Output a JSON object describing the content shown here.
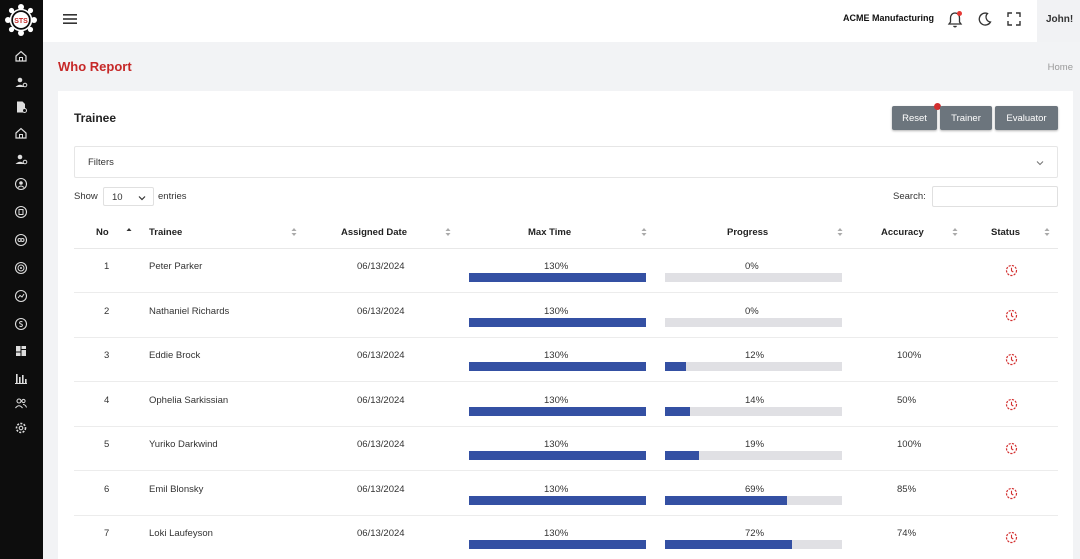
{
  "brand": {
    "logo_text": "STS"
  },
  "sidebar": {
    "icons": [
      "home-icon",
      "user-gear-icon",
      "document-gear-icon",
      "home-icon",
      "user-gear-icon",
      "user-circle-icon",
      "document-circle-icon",
      "link-circle-icon",
      "target-circle-icon",
      "chart-circle-icon",
      "dollar-circle-icon",
      "dashboard-icon",
      "bar-chart-icon",
      "users-icon",
      "settings-icon"
    ]
  },
  "header": {
    "company": "ACME Manufacturing",
    "user_name": "John!",
    "notification_dot": true
  },
  "page": {
    "title": "Who Report",
    "breadcrumb": "Home"
  },
  "card": {
    "title": "Trainee",
    "buttons": {
      "reset": "Reset",
      "trainer": "Trainer",
      "evaluator": "Evaluator"
    },
    "filters_label": "Filters",
    "show_label": "Show",
    "entries_value": "10",
    "entries_label": "entries",
    "search_label": "Search:",
    "search_value": ""
  },
  "table": {
    "columns": [
      "No",
      "Trainee",
      "Assigned Date",
      "Max Time",
      "Progress",
      "Accuracy",
      "Status"
    ],
    "rows": [
      {
        "no": "1",
        "trainee": "Peter Parker",
        "date": "06/13/2024",
        "max_time": "130%",
        "max_time_fill": 1.0,
        "progress": "0%",
        "progress_fill": 0.0,
        "accuracy": ""
      },
      {
        "no": "2",
        "trainee": "Nathaniel Richards",
        "date": "06/13/2024",
        "max_time": "130%",
        "max_time_fill": 1.0,
        "progress": "0%",
        "progress_fill": 0.0,
        "accuracy": ""
      },
      {
        "no": "3",
        "trainee": "Eddie Brock",
        "date": "06/13/2024",
        "max_time": "130%",
        "max_time_fill": 1.0,
        "progress": "12%",
        "progress_fill": 0.12,
        "accuracy": "100%"
      },
      {
        "no": "4",
        "trainee": "Ophelia Sarkissian",
        "date": "06/13/2024",
        "max_time": "130%",
        "max_time_fill": 1.0,
        "progress": "14%",
        "progress_fill": 0.14,
        "accuracy": "50%"
      },
      {
        "no": "5",
        "trainee": "Yuriko Darkwind",
        "date": "06/13/2024",
        "max_time": "130%",
        "max_time_fill": 1.0,
        "progress": "19%",
        "progress_fill": 0.19,
        "accuracy": "100%"
      },
      {
        "no": "6",
        "trainee": "Emil Blonsky",
        "date": "06/13/2024",
        "max_time": "130%",
        "max_time_fill": 1.0,
        "progress": "69%",
        "progress_fill": 0.69,
        "accuracy": "85%"
      },
      {
        "no": "7",
        "trainee": "Loki Laufeyson",
        "date": "06/13/2024",
        "max_time": "130%",
        "max_time_fill": 1.0,
        "progress": "72%",
        "progress_fill": 0.72,
        "accuracy": "74%"
      }
    ]
  },
  "colors": {
    "brand_red": "#c62828",
    "bar_fill": "#3450a3",
    "bar_track": "#e0e0e4",
    "button_gray": "#6c757d",
    "status_icon": "#d32f2f"
  }
}
